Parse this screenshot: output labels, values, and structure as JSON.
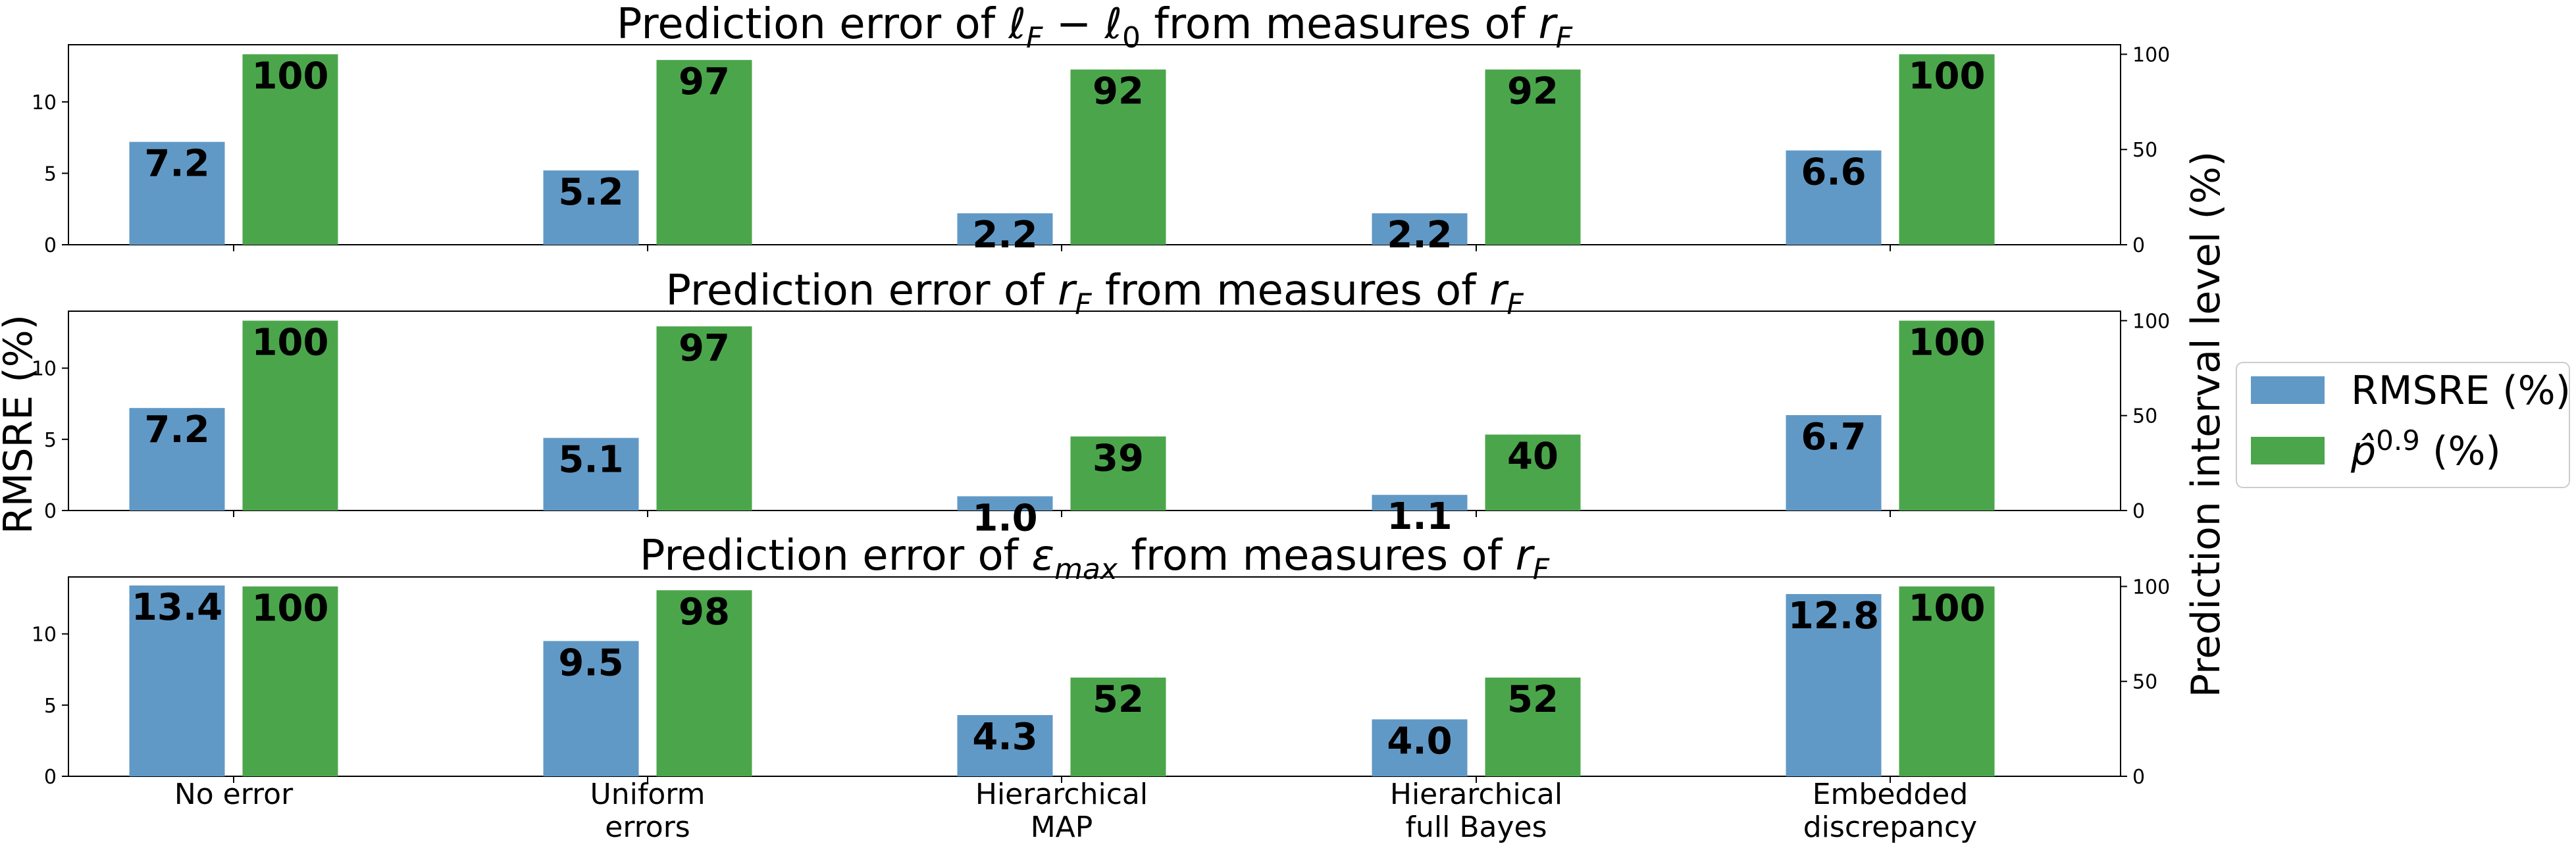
{
  "chart_data": {
    "type": "bar",
    "categories": [
      [
        "No error"
      ],
      [
        "Uniform",
        "errors"
      ],
      [
        "Hierarchical",
        "MAP"
      ],
      [
        "Hierarchical",
        "full Bayes"
      ],
      [
        "Embedded",
        "discrepancy"
      ]
    ],
    "ylabel_left": "RMSRE (%)",
    "ylabel_right": "Prediction interval level (%)",
    "legend": {
      "position": "right",
      "entries": [
        {
          "label": "RMSRE (%)",
          "color": "#6199c6"
        },
        {
          "label": "p̂0.9 (%)",
          "color": "#4ba64b"
        }
      ]
    },
    "colors": {
      "rmsre": "#6199c6",
      "coverage": "#4ba64b"
    },
    "panels": [
      {
        "title": "Prediction error of ℓF − ℓ0 from measures of rF",
        "left_ylim": [
          0,
          14
        ],
        "left_ticks": [
          0,
          5,
          10
        ],
        "right_ylim": [
          0,
          105
        ],
        "right_ticks": [
          0,
          50,
          100
        ],
        "series": [
          {
            "name": "RMSRE (%)",
            "values": [
              7.2,
              5.2,
              2.2,
              2.2,
              6.6
            ],
            "labels": [
              "7.2",
              "5.2",
              "2.2",
              "2.2",
              "6.6"
            ]
          },
          {
            "name": "p̂0.9 (%)",
            "values": [
              100,
              97,
              92,
              92,
              100
            ],
            "labels": [
              "100",
              "97",
              "92",
              "92",
              "100"
            ]
          }
        ]
      },
      {
        "title": "Prediction error of rF from measures of rF",
        "left_ylim": [
          0,
          14
        ],
        "left_ticks": [
          0,
          5,
          10
        ],
        "right_ylim": [
          0,
          105
        ],
        "right_ticks": [
          0,
          50,
          100
        ],
        "series": [
          {
            "name": "RMSRE (%)",
            "values": [
              7.2,
              5.1,
              1.0,
              1.1,
              6.7
            ],
            "labels": [
              "7.2",
              "5.1",
              "1.0",
              "1.1",
              "6.7"
            ]
          },
          {
            "name": "p̂0.9 (%)",
            "values": [
              100,
              97,
              39,
              40,
              100
            ],
            "labels": [
              "100",
              "97",
              "39",
              "40",
              "100"
            ]
          }
        ]
      },
      {
        "title": "Prediction error of εmax from measures of rF",
        "left_ylim": [
          0,
          14
        ],
        "left_ticks": [
          0,
          5,
          10
        ],
        "right_ylim": [
          0,
          105
        ],
        "right_ticks": [
          0,
          50,
          100
        ],
        "series": [
          {
            "name": "RMSRE (%)",
            "values": [
              13.4,
              9.5,
              4.3,
              4.0,
              12.8
            ],
            "labels": [
              "13.4",
              "9.5",
              "4.3",
              "4.0",
              "12.8"
            ]
          },
          {
            "name": "p̂0.9 (%)",
            "values": [
              100,
              98,
              52,
              52,
              100
            ],
            "labels": [
              "100",
              "98",
              "52",
              "52",
              "100"
            ]
          }
        ]
      }
    ]
  }
}
